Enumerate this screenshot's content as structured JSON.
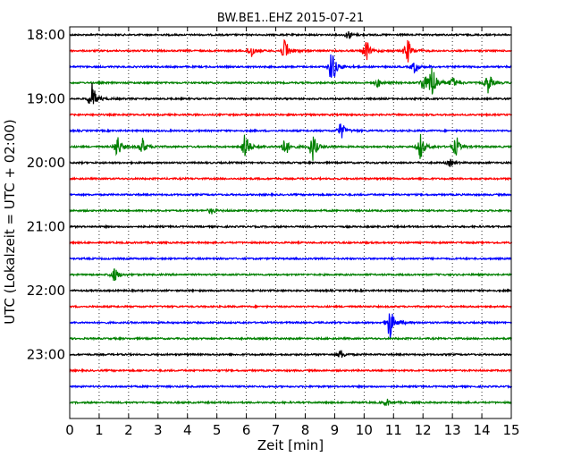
{
  "chart_data": {
    "type": "line",
    "title": "BW.BE1..EHZ 2015-07-21",
    "xlabel": "Zeit  [min]",
    "ylabel": "UTC (Lokalzeit = UTC + 02:00)",
    "xlim": [
      0,
      15
    ],
    "x_ticks": [
      0,
      1,
      2,
      3,
      4,
      5,
      6,
      7,
      8,
      9,
      10,
      11,
      12,
      13,
      14,
      15
    ],
    "x_tick_labels": [
      "0",
      "1",
      "2",
      "3",
      "4",
      "5",
      "6",
      "7",
      "8",
      "9",
      "10",
      "11",
      "12",
      "13",
      "14",
      "15"
    ],
    "y_tick_labels": [
      "18:00",
      "19:00",
      "20:00",
      "21:00",
      "22:00",
      "23:00"
    ],
    "grid": "vertical dotted",
    "colors": [
      "#000000",
      "#ff0000",
      "#0000ff",
      "#008000"
    ],
    "traces": [
      {
        "start": "18:00",
        "events": [
          {
            "t": 9.45,
            "amp": 0.25
          }
        ]
      },
      {
        "start": "18:15",
        "events": [
          {
            "t": 6.15,
            "amp": 0.4
          },
          {
            "t": 7.3,
            "amp": 0.8
          },
          {
            "t": 10.05,
            "amp": 0.6
          },
          {
            "t": 11.45,
            "amp": 0.7
          }
        ]
      },
      {
        "start": "18:30",
        "events": [
          {
            "t": 8.9,
            "amp": 1.1
          },
          {
            "t": 11.7,
            "amp": 0.4
          }
        ]
      },
      {
        "start": "18:45",
        "events": [
          {
            "t": 10.45,
            "amp": 0.25
          },
          {
            "t": 12.0,
            "amp": 0.5
          },
          {
            "t": 12.3,
            "amp": 1.2
          },
          {
            "t": 13.0,
            "amp": 0.3
          },
          {
            "t": 14.2,
            "amp": 0.6
          }
        ]
      },
      {
        "start": "19:00",
        "events": [
          {
            "t": 0.75,
            "amp": 0.9
          }
        ]
      },
      {
        "start": "19:15",
        "events": []
      },
      {
        "start": "19:30",
        "events": [
          {
            "t": 9.2,
            "amp": 0.5
          }
        ]
      },
      {
        "start": "19:45",
        "events": [
          {
            "t": 1.6,
            "amp": 0.7
          },
          {
            "t": 2.45,
            "amp": 0.5
          },
          {
            "t": 5.95,
            "amp": 1.0
          },
          {
            "t": 7.3,
            "amp": 0.55
          },
          {
            "t": 8.25,
            "amp": 0.8
          },
          {
            "t": 11.9,
            "amp": 0.8
          },
          {
            "t": 13.1,
            "amp": 0.6
          }
        ]
      },
      {
        "start": "20:00",
        "events": [
          {
            "t": 12.9,
            "amp": 0.2
          }
        ]
      },
      {
        "start": "20:15",
        "events": []
      },
      {
        "start": "20:30",
        "events": []
      },
      {
        "start": "20:45",
        "events": [
          {
            "t": 4.8,
            "amp": 0.2
          }
        ]
      },
      {
        "start": "21:00",
        "events": []
      },
      {
        "start": "21:15",
        "events": []
      },
      {
        "start": "21:30",
        "events": []
      },
      {
        "start": "21:45",
        "events": [
          {
            "t": 1.5,
            "amp": 0.45
          }
        ]
      },
      {
        "start": "22:00",
        "events": []
      },
      {
        "start": "22:15",
        "events": []
      },
      {
        "start": "22:30",
        "events": [
          {
            "t": 10.85,
            "amp": 1.1
          }
        ]
      },
      {
        "start": "22:45",
        "events": []
      },
      {
        "start": "23:00",
        "events": [
          {
            "t": 9.2,
            "amp": 0.25
          }
        ]
      },
      {
        "start": "23:15",
        "events": []
      },
      {
        "start": "23:30",
        "events": []
      },
      {
        "start": "23:45",
        "events": [
          {
            "t": 10.75,
            "amp": 0.2
          }
        ]
      }
    ]
  }
}
